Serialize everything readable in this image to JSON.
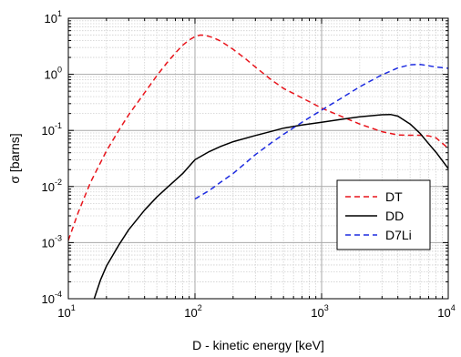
{
  "chart_data": {
    "type": "line",
    "title": "",
    "xlabel": "D - kinetic energy [keV]",
    "ylabel": "σ [barns]",
    "xscale": "log",
    "yscale": "log",
    "xlim": [
      10,
      10000
    ],
    "ylim": [
      0.0001,
      10
    ],
    "grid": true,
    "legend_position": "lower-right",
    "x_ticks": [
      {
        "base": "10",
        "exp": "1"
      },
      {
        "base": "10",
        "exp": "2"
      },
      {
        "base": "10",
        "exp": "3"
      },
      {
        "base": "10",
        "exp": "4"
      }
    ],
    "y_ticks": [
      {
        "base": "10",
        "exp": "-4"
      },
      {
        "base": "10",
        "exp": "-3"
      },
      {
        "base": "10",
        "exp": "-2"
      },
      {
        "base": "10",
        "exp": "-1"
      },
      {
        "base": "10",
        "exp": "0"
      },
      {
        "base": "10",
        "exp": "1"
      }
    ],
    "series": [
      {
        "name": "DT",
        "color": "#e8141b",
        "dash": "dashed",
        "x": [
          10,
          12,
          15,
          20,
          25,
          30,
          40,
          50,
          60,
          70,
          80,
          90,
          100,
          110,
          120,
          140,
          160,
          200,
          250,
          300,
          400,
          500,
          700,
          1000,
          1500,
          2000,
          3000,
          4000,
          5000,
          6000,
          7000,
          8000,
          10000
        ],
        "y": [
          0.0011,
          0.0035,
          0.012,
          0.043,
          0.1,
          0.19,
          0.47,
          0.95,
          1.6,
          2.4,
          3.3,
          4.1,
          4.7,
          5.0,
          4.95,
          4.5,
          3.9,
          2.8,
          1.9,
          1.35,
          0.8,
          0.56,
          0.38,
          0.25,
          0.17,
          0.13,
          0.095,
          0.083,
          0.082,
          0.082,
          0.08,
          0.074,
          0.048
        ]
      },
      {
        "name": "DD",
        "color": "#000000",
        "dash": "solid",
        "x": [
          16,
          18,
          20,
          25,
          30,
          40,
          50,
          60,
          70,
          80,
          100,
          130,
          160,
          200,
          300,
          400,
          500,
          700,
          1000,
          1500,
          2000,
          3000,
          3500,
          4000,
          5000,
          6000,
          7000,
          8000,
          10000
        ],
        "y": [
          0.0001,
          0.00022,
          0.00038,
          0.0009,
          0.0017,
          0.0038,
          0.0065,
          0.0095,
          0.013,
          0.017,
          0.03,
          0.042,
          0.052,
          0.063,
          0.081,
          0.096,
          0.11,
          0.125,
          0.14,
          0.16,
          0.175,
          0.19,
          0.192,
          0.18,
          0.13,
          0.088,
          0.058,
          0.041,
          0.021
        ]
      },
      {
        "name": "D7Li",
        "color": "#1d2be0",
        "dash": "dashed",
        "x": [
          100,
          130,
          160,
          200,
          250,
          300,
          400,
          500,
          700,
          1000,
          1500,
          2000,
          3000,
          4000,
          5000,
          6000,
          7000,
          8000,
          10000
        ],
        "y": [
          0.006,
          0.0085,
          0.012,
          0.017,
          0.026,
          0.037,
          0.06,
          0.085,
          0.14,
          0.23,
          0.4,
          0.6,
          0.98,
          1.3,
          1.48,
          1.5,
          1.42,
          1.35,
          1.28
        ]
      }
    ]
  }
}
